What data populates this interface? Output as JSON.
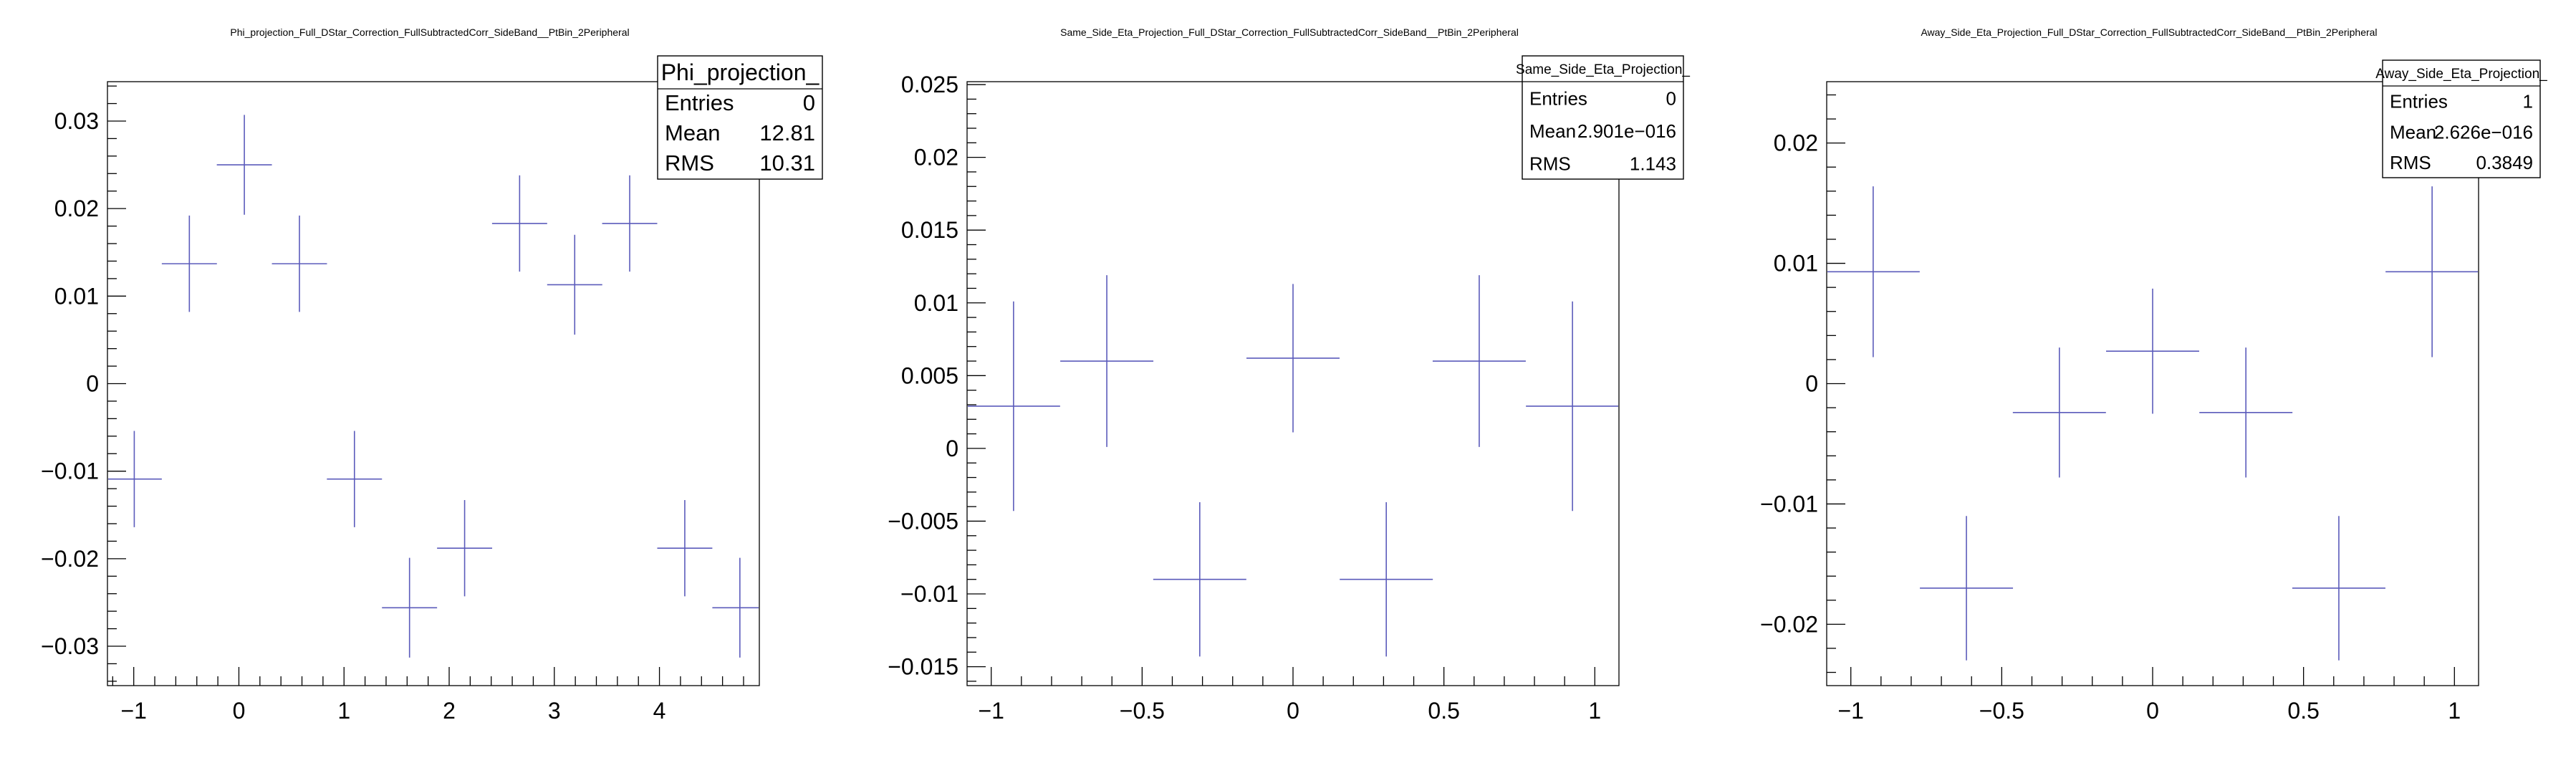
{
  "chart_data": [
    {
      "type": "scatter",
      "title": "Phi_projection_Full_DStar_Correction_FullSubtractedCorr_SideBand__PtBin_2Peripheral",
      "xlim": [
        -1.25,
        4.95
      ],
      "ylim": [
        -0.0345,
        0.0345
      ],
      "xticks": [
        -1,
        0,
        1,
        2,
        3,
        4
      ],
      "xtick_labels": [
        "−1",
        "0",
        "1",
        "2",
        "3",
        "4"
      ],
      "yticks": [
        -0.03,
        -0.02,
        -0.01,
        0,
        0.01,
        0.02,
        0.03
      ],
      "ytick_labels": [
        "−0.03",
        "−0.02",
        "−0.01",
        "0",
        "0.01",
        "0.02",
        "0.03"
      ],
      "grid": false,
      "color": "#5b5bbb",
      "bin_width": 0.524,
      "points": [
        {
          "x": -0.995,
          "y": -0.0109,
          "err": 0.0055
        },
        {
          "x": -0.471,
          "y": 0.0137,
          "err": 0.0055
        },
        {
          "x": 0.052,
          "y": 0.025,
          "err": 0.0057
        },
        {
          "x": 0.576,
          "y": 0.0137,
          "err": 0.0055
        },
        {
          "x": 1.099,
          "y": -0.0109,
          "err": 0.0055
        },
        {
          "x": 1.623,
          "y": -0.0256,
          "err": 0.0057
        },
        {
          "x": 2.147,
          "y": -0.0188,
          "err": 0.0055
        },
        {
          "x": 2.67,
          "y": 0.0183,
          "err": 0.0055
        },
        {
          "x": 3.194,
          "y": 0.0113,
          "err": 0.0057
        },
        {
          "x": 3.717,
          "y": 0.0183,
          "err": 0.0055
        },
        {
          "x": 4.241,
          "y": -0.0188,
          "err": 0.0055
        },
        {
          "x": 4.765,
          "y": -0.0256,
          "err": 0.0057
        }
      ],
      "stats": {
        "name": "Phi_projection_",
        "rows": [
          {
            "label": "Entries",
            "value": "0"
          },
          {
            "label": "Mean",
            "value": "12.81"
          },
          {
            "label": "RMS",
            "value": "10.31"
          }
        ]
      }
    },
    {
      "type": "scatter",
      "title": "Same_Side_Eta_Projection_Full_DStar_Correction_FullSubtractedCorr_SideBand__PtBin_2Peripheral",
      "xlim": [
        -1.08,
        1.08
      ],
      "ylim": [
        -0.0163,
        0.0252
      ],
      "xticks": [
        -1,
        -0.5,
        0,
        0.5,
        1
      ],
      "xtick_labels": [
        "−1",
        "−0.5",
        "0",
        "0.5",
        "1"
      ],
      "yticks": [
        -0.015,
        -0.01,
        -0.005,
        0,
        0.005,
        0.01,
        0.015,
        0.02,
        0.025
      ],
      "ytick_labels": [
        "−0.015",
        "−0.01",
        "−0.005",
        "0",
        "0.005",
        "0.01",
        "0.015",
        "0.02",
        "0.025"
      ],
      "grid": false,
      "color": "#5b5bbb",
      "bin_width": 0.3085,
      "points": [
        {
          "x": -0.926,
          "y": 0.0029,
          "err": 0.0072
        },
        {
          "x": -0.617,
          "y": 0.006,
          "err": 0.0059
        },
        {
          "x": -0.309,
          "y": -0.009,
          "err": 0.0053
        },
        {
          "x": 0.0,
          "y": 0.0062,
          "err": 0.0051
        },
        {
          "x": 0.309,
          "y": -0.009,
          "err": 0.0053
        },
        {
          "x": 0.617,
          "y": 0.006,
          "err": 0.0059
        },
        {
          "x": 0.926,
          "y": 0.0029,
          "err": 0.0072
        }
      ],
      "stats": {
        "name": "Same_Side_Eta_Projection_",
        "rows": [
          {
            "label": "Entries",
            "value": "0"
          },
          {
            "label": "Mean",
            "value": "2.901e−016"
          },
          {
            "label": "RMS",
            "value": "1.143"
          }
        ]
      }
    },
    {
      "type": "scatter",
      "title": "Away_Side_Eta_Projection_Full_DStar_Correction_FullSubtractedCorr_SideBand__PtBin_2Peripheral",
      "xlim": [
        -1.08,
        1.08
      ],
      "ylim": [
        -0.0251,
        0.0251
      ],
      "xticks": [
        -1,
        -0.5,
        0,
        0.5,
        1
      ],
      "xtick_labels": [
        "−1",
        "−0.5",
        "0",
        "0.5",
        "1"
      ],
      "yticks": [
        -0.02,
        -0.01,
        0,
        0.01,
        0.02
      ],
      "ytick_labels": [
        "−0.02",
        "−0.01",
        "0",
        "0.01",
        "0.02"
      ],
      "grid": false,
      "color": "#5b5bbb",
      "bin_width": 0.3085,
      "points": [
        {
          "x": -0.926,
          "y": 0.0093,
          "err": 0.0071
        },
        {
          "x": -0.617,
          "y": -0.017,
          "err": 0.006
        },
        {
          "x": -0.309,
          "y": -0.0024,
          "err": 0.0054
        },
        {
          "x": 0.0,
          "y": 0.0027,
          "err": 0.0052
        },
        {
          "x": 0.309,
          "y": -0.0024,
          "err": 0.0054
        },
        {
          "x": 0.617,
          "y": -0.017,
          "err": 0.006
        },
        {
          "x": 0.926,
          "y": 0.0093,
          "err": 0.0071
        }
      ],
      "stats": {
        "name": "Away_Side_Eta_Projection_",
        "rows": [
          {
            "label": "Entries",
            "value": "1"
          },
          {
            "label": "Mean",
            "value": "2.626e−016"
          },
          {
            "label": "RMS",
            "value": "0.3849"
          }
        ]
      }
    }
  ]
}
